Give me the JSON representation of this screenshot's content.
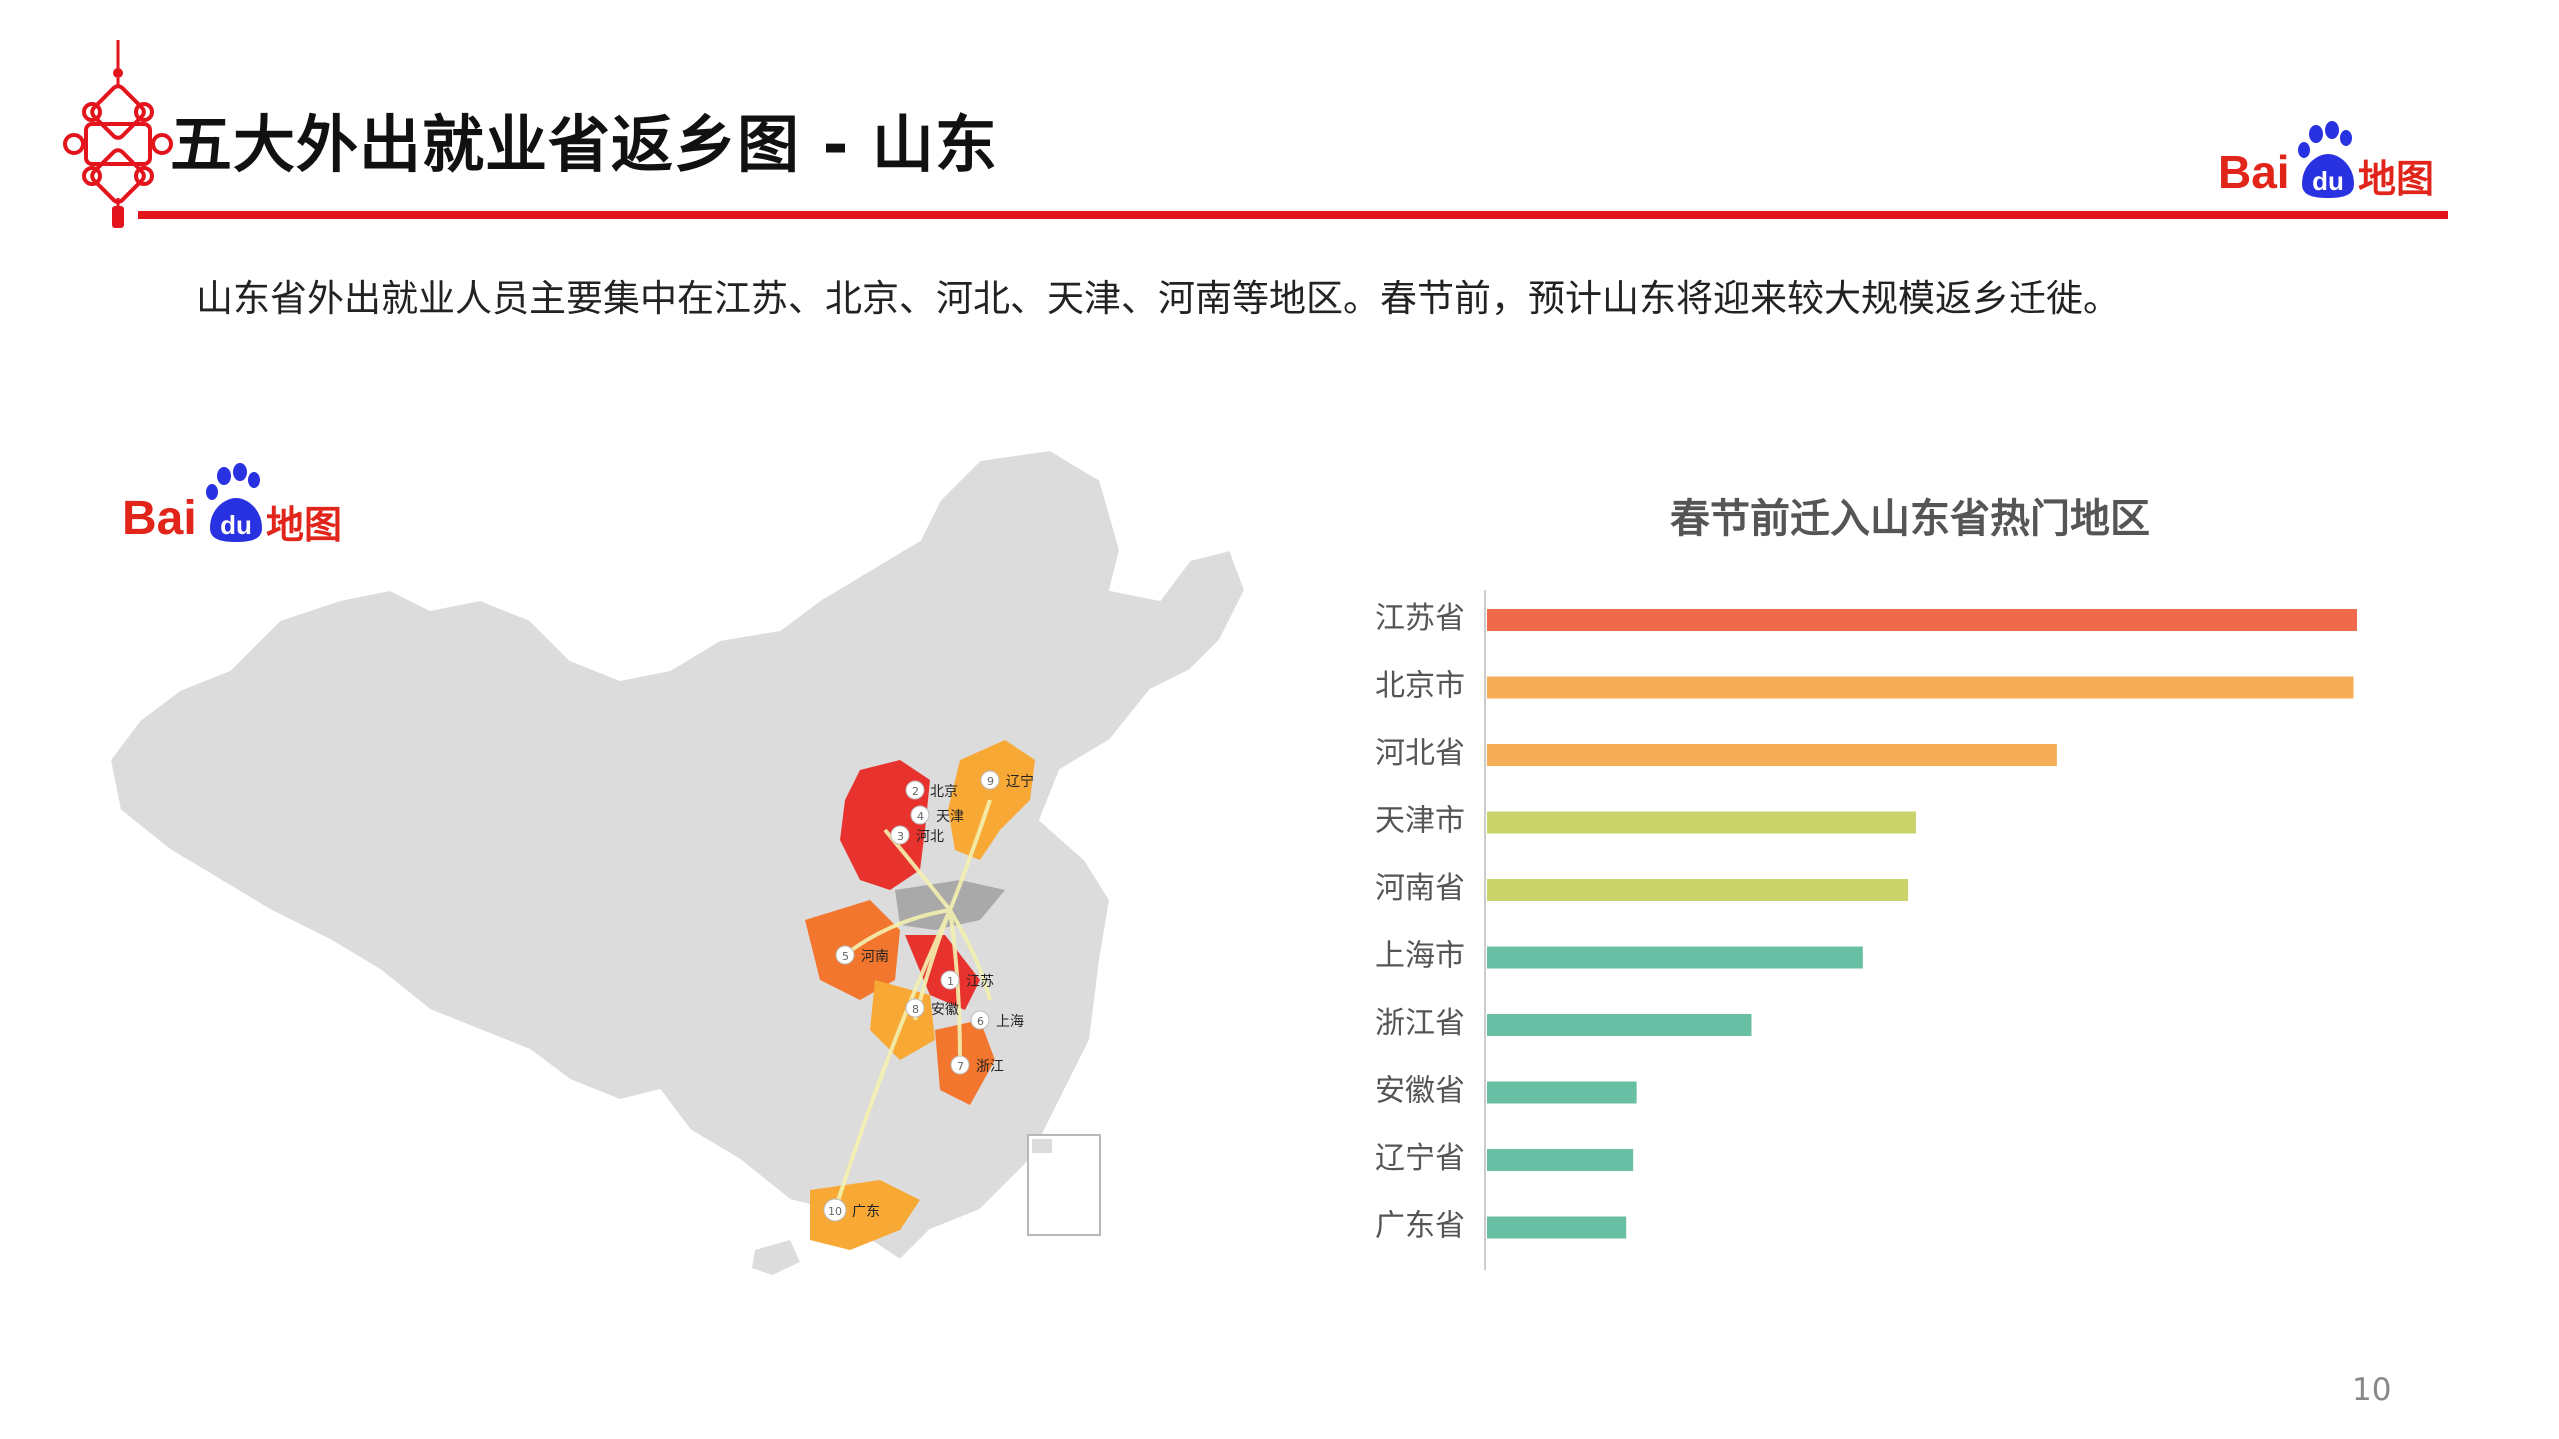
{
  "header": {
    "title": "五大外出就业省返乡图 - 山东",
    "logo_text": "Bai",
    "logo_du": "du",
    "logo_suffix": "地图"
  },
  "intro": "山东省外出就业人员主要集中在江苏、北京、河北、天津、河南等地区。春节前，预计山东将迎来较大规模返乡迁徙。",
  "map": {
    "logo_text": "Bai",
    "logo_du": "du",
    "logo_suffix": "地图",
    "markers": [
      {
        "rank": "1",
        "name": "江苏"
      },
      {
        "rank": "2",
        "name": "北京"
      },
      {
        "rank": "3",
        "name": "河北"
      },
      {
        "rank": "4",
        "name": "天津"
      },
      {
        "rank": "5",
        "name": "河南"
      },
      {
        "rank": "6",
        "name": "上海"
      },
      {
        "rank": "7",
        "name": "浙江"
      },
      {
        "rank": "8",
        "name": "安徽"
      },
      {
        "rank": "9",
        "name": "辽宁"
      },
      {
        "rank": "10",
        "name": "广东"
      }
    ],
    "colors": {
      "base": "#dcdcdc",
      "destination": "#d7d7d7",
      "hot": "#e8322d",
      "warm": "#f2762e",
      "mild": "#f7a835",
      "flow": "#f4f1b0"
    }
  },
  "chart_data": {
    "type": "bar",
    "orientation": "horizontal",
    "title": "春节前迁入山东省热门地区",
    "categories": [
      "江苏省",
      "北京市",
      "河北省",
      "天津市",
      "河南省",
      "上海市",
      "浙江省",
      "安徽省",
      "辽宁省",
      "广东省"
    ],
    "values": [
      100,
      99.6,
      65.5,
      49.3,
      48.4,
      43.2,
      30.4,
      17.2,
      16.8,
      16.0
    ],
    "xlim": [
      0,
      100
    ],
    "colors": [
      "#ee6a4a",
      "#f5ae56",
      "#f5ae56",
      "#cad36a",
      "#cad36a",
      "#68bfa3",
      "#68bfa3",
      "#68bfa3",
      "#68bfa3",
      "#68bfa3"
    ],
    "grid": false,
    "legend": "none"
  },
  "page_number": "10"
}
